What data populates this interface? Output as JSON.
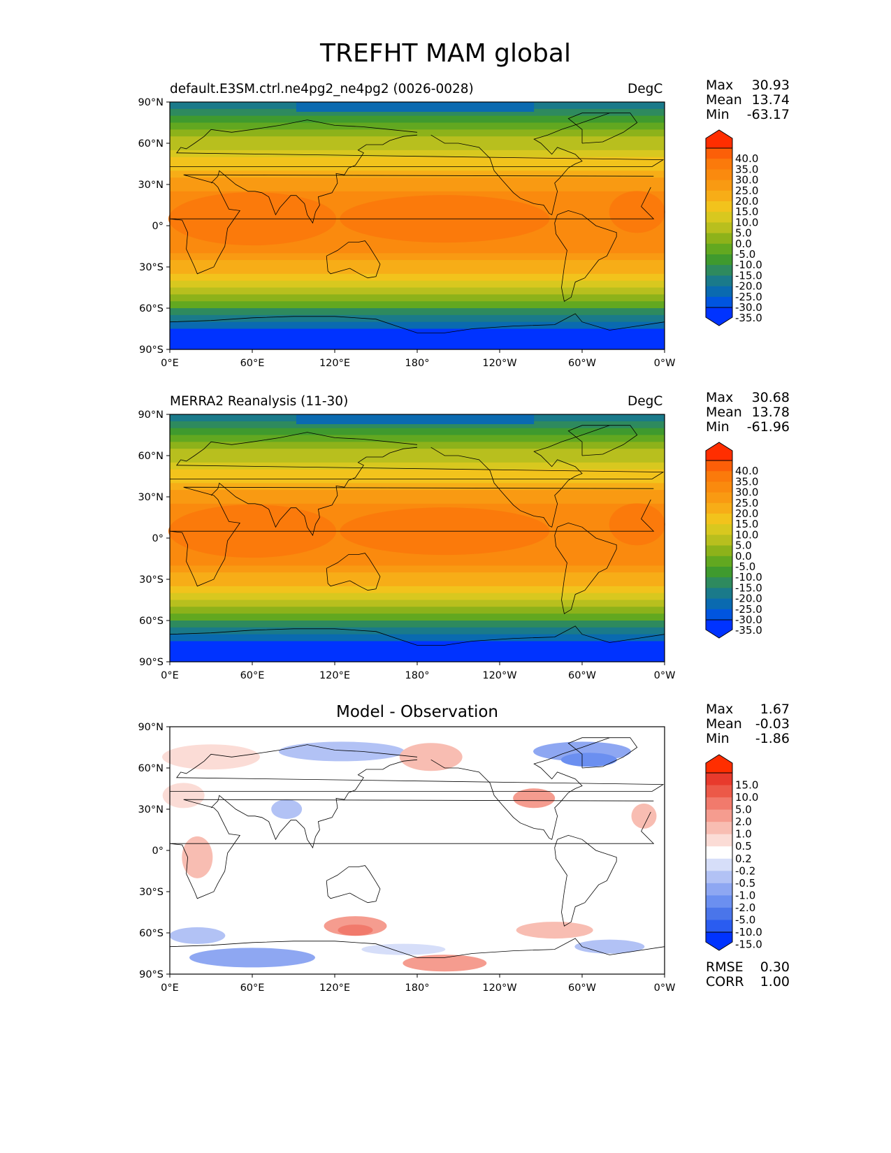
{
  "figure": {
    "title": "TREFHT MAM global"
  },
  "axes": {
    "lat_ticks": [
      "90°N",
      "60°N",
      "30°N",
      "0°",
      "30°S",
      "60°S",
      "90°S"
    ],
    "lon_ticks": [
      "0°E",
      "60°E",
      "120°E",
      "180°",
      "120°W",
      "60°W",
      "0°W"
    ]
  },
  "panels": [
    {
      "title_left": "default.E3SM.ctrl.ne4pg2_ne4pg2 (0026-0028)",
      "units": "DegC",
      "stats": {
        "max_label": "Max",
        "max": "30.93",
        "mean_label": "Mean",
        "mean": "13.74",
        "min_label": "Min",
        "min": "-63.17"
      },
      "colorbar_labels": [
        "40.0",
        "35.0",
        "30.0",
        "25.0",
        "20.0",
        "15.0",
        "10.0",
        "5.0",
        "0.0",
        "-5.0",
        "-10.0",
        "-15.0",
        "-20.0",
        "-25.0",
        "-30.0",
        "-35.0"
      ]
    },
    {
      "title_left": "MERRA2 Reanalysis (11-30)",
      "units": "DegC",
      "stats": {
        "max_label": "Max",
        "max": "30.68",
        "mean_label": "Mean",
        "mean": "13.78",
        "min_label": "Min",
        "min": "-61.96"
      },
      "colorbar_labels": [
        "40.0",
        "35.0",
        "30.0",
        "25.0",
        "20.0",
        "15.0",
        "10.0",
        "5.0",
        "0.0",
        "-5.0",
        "-10.0",
        "-15.0",
        "-20.0",
        "-25.0",
        "-30.0",
        "-35.0"
      ]
    },
    {
      "title_center": "Model - Observation",
      "stats": {
        "max_label": "Max",
        "max": "1.67",
        "mean_label": "Mean",
        "mean": "-0.03",
        "min_label": "Min",
        "min": "-1.86"
      },
      "colorbar_labels": [
        "15.0",
        "10.0",
        "5.0",
        "2.0",
        "1.0",
        "0.5",
        "0.2",
        "-0.2",
        "-0.5",
        "-1.0",
        "-2.0",
        "-5.0",
        "-10.0",
        "-15.0"
      ],
      "metrics": {
        "rmse_label": "RMSE",
        "rmse": "0.30",
        "corr_label": "CORR",
        "corr": "1.00"
      }
    }
  ],
  "colors": {
    "temp_levels": [
      "#0033ff",
      "#0055e0",
      "#0a6ab0",
      "#1a7a8a",
      "#2e8a5e",
      "#3f9a2e",
      "#62a820",
      "#8db21a",
      "#b8bf1e",
      "#d8c81f",
      "#f2c31c",
      "#f7ad17",
      "#f99a12",
      "#fa8a0e",
      "#fb7a0b",
      "#fc5f08",
      "#ff2e00"
    ],
    "diff_levels": [
      "#0033ff",
      "#2a5cf0",
      "#4a75ea",
      "#6b8ff0",
      "#8ea7f2",
      "#b2c2f5",
      "#d6def9",
      "#ffffff",
      "#fbdcd6",
      "#f8bdb2",
      "#f59c8f",
      "#f17a6c",
      "#ec5948",
      "#e83a2c",
      "#ff2e00"
    ]
  }
}
